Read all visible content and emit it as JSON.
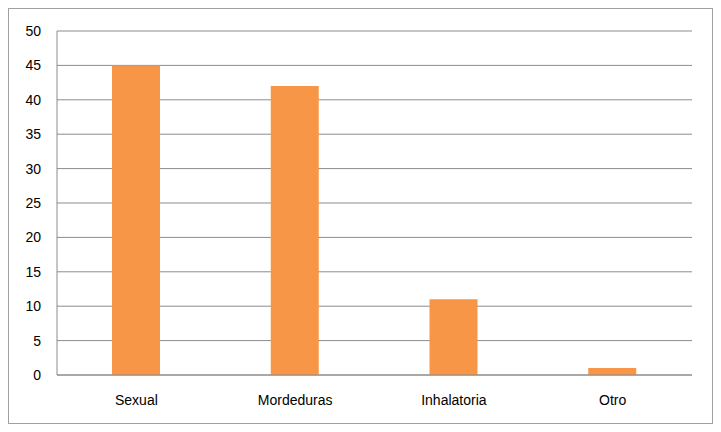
{
  "chart_data": {
    "type": "bar",
    "categories": [
      "Sexual",
      "Mordeduras",
      "Inhalatoria",
      "Otro"
    ],
    "values": [
      45,
      42,
      11,
      1
    ],
    "color": "#f79646",
    "ylim": [
      0,
      50
    ],
    "yticks": [
      0,
      5,
      10,
      15,
      20,
      25,
      30,
      35,
      40,
      45,
      50
    ],
    "grid": true
  }
}
